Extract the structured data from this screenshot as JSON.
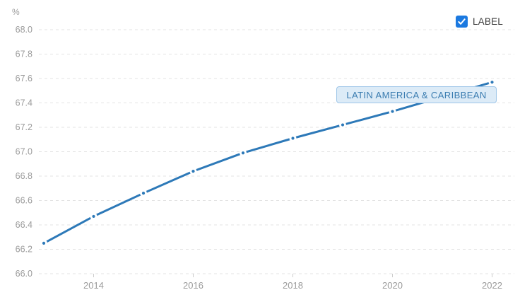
{
  "unit_label": "%",
  "legend": {
    "label": "LABEL",
    "checked": true
  },
  "series_annotation": "LATIN AMERICA & CARIBBEAN",
  "colors": {
    "line": "#2d79b8",
    "marker": "#2d79b8",
    "marker_halo": "#ffffff",
    "grid": "#e3e3e3",
    "tick": "#cccccc",
    "axis_text": "#9b9b9b",
    "legend_text": "#3d3d3d",
    "checkbox": "#1b79e0",
    "annotation_bg": "#dcebf7",
    "annotation_border": "#9fc6e8",
    "annotation_text": "#3a7cb0"
  },
  "chart_data": {
    "type": "line",
    "title": "",
    "xlabel": "",
    "ylabel": "%",
    "x": [
      2013,
      2014,
      2015,
      2016,
      2017,
      2018,
      2019,
      2020,
      2021,
      2022
    ],
    "series": [
      {
        "name": "LATIN AMERICA & CARIBBEAN",
        "values": [
          66.25,
          66.47,
          66.66,
          66.84,
          66.99,
          67.11,
          67.22,
          67.33,
          67.45,
          67.57
        ]
      }
    ],
    "ylim": [
      66.0,
      68.0
    ],
    "ytick_step": 0.2,
    "yticks": [
      66.0,
      66.2,
      66.4,
      66.6,
      66.8,
      67.0,
      67.2,
      67.4,
      67.6,
      67.8,
      68.0
    ],
    "xticks": [
      2014,
      2016,
      2018,
      2020,
      2022
    ],
    "grid": "horizontal-dashed",
    "legend_position": "top-right",
    "annotation_note": "2021 point hidden behind series label box"
  }
}
